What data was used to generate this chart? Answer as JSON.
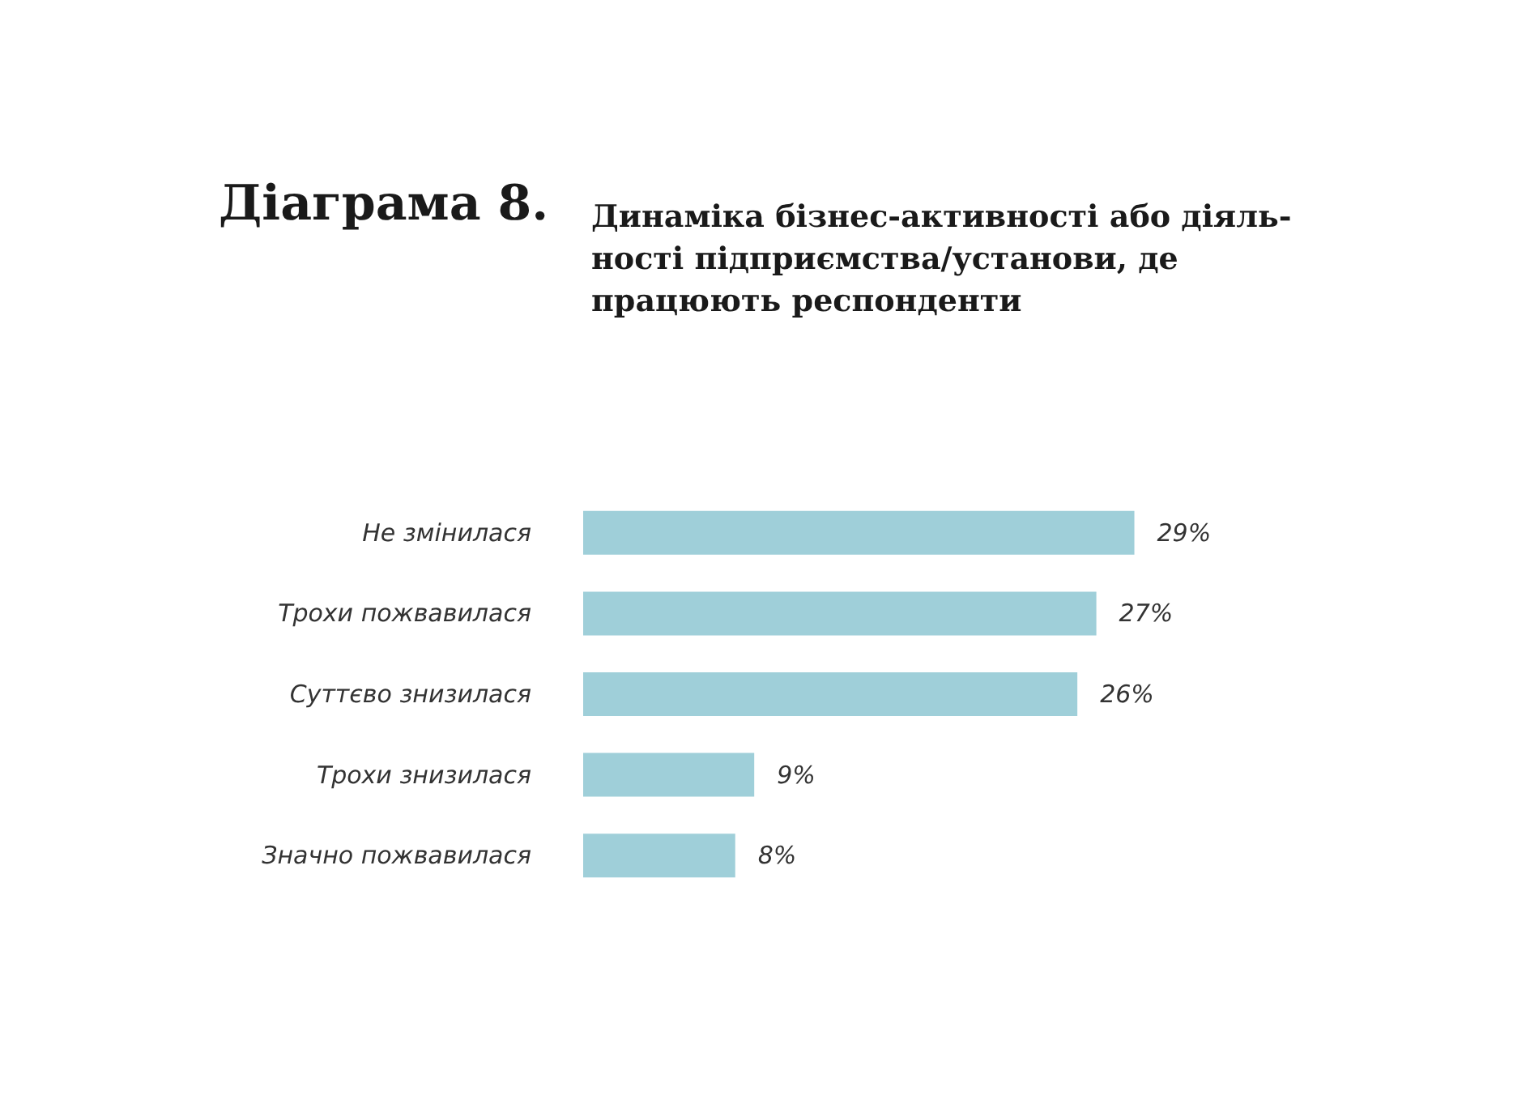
{
  "chart_data": {
    "type": "bar",
    "orientation": "horizontal",
    "title": "Діаграма 8.",
    "subtitle": "Динаміка бізнес-активності або діяль-\nності підприємства/установи, де\nпрацюють респонденти",
    "categories": [
      "Не змінилася",
      "Трохи пожвавилася",
      "Суттєво знизилася",
      "Трохи знизилася",
      "Значно пожвавилася"
    ],
    "values": [
      29,
      27,
      26,
      9,
      8
    ],
    "value_labels": [
      "29%",
      "27%",
      "26%",
      "9%",
      "8%"
    ],
    "color": "#9fcfd9"
  }
}
